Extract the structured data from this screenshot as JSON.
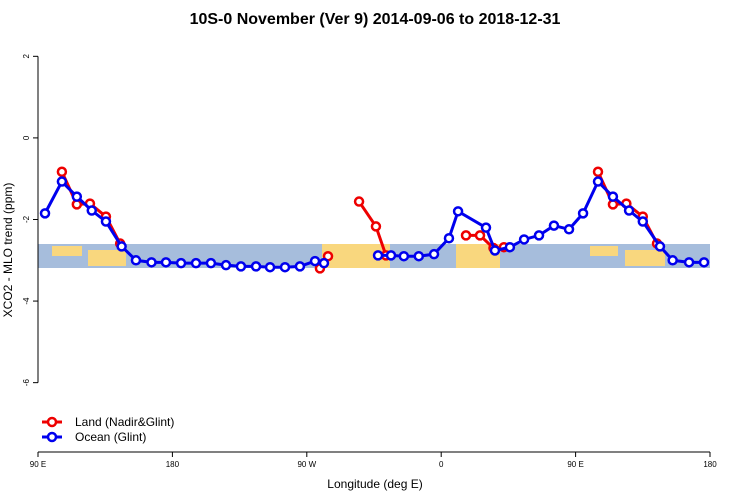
{
  "chart_data": {
    "type": "line",
    "title": "10S-0 November (Ver 9)   2014-09-06 to 2018-12-31",
    "x_label": "Longitude (deg E)",
    "y_label": "XCO2 - MLO trend (ppm)",
    "xlim": [
      90,
      540
    ],
    "ylim": [
      -7.7,
      2.4
    ],
    "xticks": [
      {
        "value": 90,
        "label": "90 E"
      },
      180,
      {
        "value": 270,
        "label": "90 W"
      },
      {
        "value": 360,
        "label": "0"
      },
      {
        "value": 450,
        "label": "90 E"
      },
      {
        "value": 540,
        "label": "180"
      }
    ],
    "yticks": [
      -6,
      -4,
      -2,
      0,
      2
    ],
    "legend": "bottom-left",
    "series": [
      {
        "name": "Land (Nadir&Glint)",
        "color": "#ee0000",
        "x": [
          106,
          116,
          124.8,
          135.5,
          145,
          null,
          278.8,
          284.2,
          null,
          305,
          316.3,
          323,
          null,
          376.6,
          386,
          395,
          402,
          null,
          465,
          475,
          484,
          495,
          504.5
        ],
        "values": [
          -0.83,
          -1.63,
          -1.61,
          -1.93,
          -2.59,
          null,
          -3.2,
          -2.9,
          null,
          -1.56,
          -2.17,
          -2.88,
          null,
          -2.39,
          -2.39,
          -2.7,
          -2.68,
          null,
          -0.83,
          -1.63,
          -1.61,
          -1.93,
          -2.59
        ]
      },
      {
        "name": "Ocean (Glint)",
        "color": "#0000ee",
        "x": [
          94.7,
          106,
          116,
          126,
          135.5,
          146,
          155.6,
          166,
          175.7,
          185.8,
          195.8,
          205.8,
          215.9,
          225.9,
          236,
          245.4,
          255.4,
          265.4,
          275.5,
          281.5,
          null,
          317.7,
          326.4,
          335,
          345,
          355.2,
          365.2,
          371.3,
          390,
          396,
          406,
          415.5,
          425.5,
          435.5,
          445.6,
          455,
          465,
          475,
          485.8,
          495,
          506.5,
          515,
          526,
          536
        ],
        "values": [
          -1.85,
          -1.07,
          -1.44,
          -1.78,
          -2.05,
          -2.66,
          -3.0,
          -3.05,
          -3.05,
          -3.07,
          -3.07,
          -3.07,
          -3.12,
          -3.15,
          -3.15,
          -3.17,
          -3.17,
          -3.15,
          -3.02,
          -3.07,
          null,
          -2.88,
          -2.88,
          -2.9,
          -2.9,
          -2.85,
          -2.46,
          -1.8,
          -2.2,
          -2.76,
          -2.68,
          -2.49,
          -2.39,
          -2.15,
          -2.24,
          -1.85,
          -1.07,
          -1.44,
          -1.78,
          -2.05,
          -2.66,
          -3.0,
          -3.05,
          -3.05
        ]
      }
    ]
  }
}
